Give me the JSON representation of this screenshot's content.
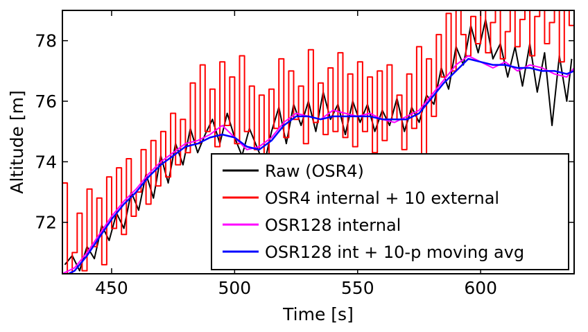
{
  "chart_data": {
    "type": "line",
    "title": "",
    "xlabel": "Time [s]",
    "ylabel": "Altitude [m]",
    "xlim": [
      430,
      638
    ],
    "ylim": [
      70.3,
      79
    ],
    "xticks": [
      450,
      500,
      550,
      600
    ],
    "yticks": [
      72,
      74,
      76,
      78
    ],
    "grid": false,
    "legend_position": "bottom-right",
    "series": [
      {
        "name": "Raw (OSR4)",
        "color": "#000000",
        "x": [
          431,
          434,
          437,
          440,
          443,
          446,
          449,
          452,
          455,
          458,
          461,
          464,
          467,
          470,
          473,
          476,
          479,
          482,
          485,
          488,
          491,
          494,
          497,
          500,
          503,
          506,
          509,
          512,
          515,
          518,
          521,
          524,
          527,
          530,
          533,
          536,
          539,
          542,
          545,
          548,
          551,
          554,
          557,
          560,
          563,
          566,
          569,
          572,
          575,
          578,
          581,
          584,
          587,
          590,
          593,
          596,
          599,
          602,
          605,
          608,
          611,
          614,
          617,
          620,
          623,
          626,
          629,
          632,
          635,
          637
        ],
        "values": [
          70.6,
          70.9,
          70.4,
          71.2,
          70.8,
          71.9,
          71.4,
          72.3,
          71.8,
          73.0,
          72.4,
          73.6,
          72.8,
          74.2,
          73.3,
          74.6,
          73.9,
          75.1,
          74.3,
          74.9,
          75.4,
          74.6,
          75.6,
          74.8,
          74.2,
          75.1,
          74.5,
          73.9,
          75.0,
          75.8,
          74.6,
          75.9,
          75.2,
          76.0,
          75.0,
          76.3,
          75.4,
          75.9,
          74.9,
          76.0,
          75.3,
          75.9,
          75.0,
          75.7,
          75.2,
          76.1,
          75.0,
          75.8,
          75.3,
          76.2,
          75.9,
          77.1,
          76.4,
          77.8,
          77.2,
          78.5,
          77.6,
          78.7,
          77.4,
          77.9,
          76.8,
          77.8,
          76.5,
          77.9,
          76.3,
          77.6,
          75.2,
          77.5,
          76.0,
          77.4
        ]
      },
      {
        "name": "OSR4 internal + 10 external",
        "color": "#ff0000",
        "x": [
          430,
          432,
          434,
          436,
          438,
          440,
          442,
          444,
          446,
          448,
          450,
          452,
          454,
          456,
          458,
          460,
          462,
          464,
          466,
          468,
          470,
          472,
          474,
          476,
          478,
          480,
          482,
          484,
          486,
          488,
          490,
          492,
          494,
          496,
          498,
          500,
          502,
          504,
          506,
          508,
          510,
          512,
          514,
          516,
          518,
          520,
          522,
          524,
          526,
          528,
          530,
          532,
          534,
          536,
          538,
          540,
          542,
          544,
          546,
          548,
          550,
          552,
          554,
          556,
          558,
          560,
          562,
          564,
          566,
          568,
          570,
          572,
          574,
          576,
          578,
          580,
          582,
          584,
          586,
          588,
          590,
          592,
          594,
          596,
          598,
          600,
          602,
          604,
          606,
          608,
          610,
          612,
          614,
          616,
          618,
          620,
          622,
          624,
          626,
          628,
          630,
          632,
          634,
          636,
          638
        ],
        "values": [
          70.5,
          73.3,
          70.3,
          71.0,
          72.3,
          70.4,
          73.1,
          71.2,
          72.8,
          70.6,
          73.5,
          71.8,
          73.8,
          71.6,
          74.1,
          72.2,
          73.0,
          74.4,
          72.6,
          74.7,
          73.2,
          75.0,
          73.5,
          75.6,
          73.9,
          75.4,
          74.3,
          76.6,
          74.6,
          77.2,
          75.0,
          76.4,
          74.5,
          77.3,
          75.2,
          76.8,
          74.6,
          77.5,
          75.0,
          76.5,
          74.4,
          76.2,
          73.8,
          76.4,
          75.1,
          77.4,
          74.8,
          77.0,
          75.4,
          76.5,
          74.6,
          77.7,
          75.3,
          76.6,
          74.9,
          77.1,
          75.0,
          77.6,
          74.8,
          76.9,
          74.5,
          77.3,
          75.0,
          76.8,
          74.3,
          77.0,
          74.7,
          77.2,
          75.4,
          76.2,
          74.4,
          76.9,
          75.1,
          77.8,
          74.0,
          77.4,
          75.5,
          78.2,
          76.8,
          78.9,
          77.0,
          79.0,
          78.2,
          77.5,
          78.8,
          77.9,
          79.0,
          77.6,
          78.6,
          79.0,
          77.4,
          78.3,
          79.0,
          77.8,
          78.7,
          79.0,
          77.5,
          78.8,
          79.0,
          77.9,
          78.6,
          79.0,
          77.3,
          79.0,
          78.5
        ]
      },
      {
        "name": "OSR128 internal",
        "color": "#ff00ff",
        "x": [
          430,
          435,
          440,
          445,
          450,
          455,
          460,
          465,
          470,
          475,
          480,
          485,
          490,
          495,
          500,
          505,
          510,
          515,
          520,
          525,
          530,
          535,
          540,
          545,
          550,
          555,
          560,
          565,
          570,
          575,
          580,
          585,
          590,
          595,
          600,
          605,
          610,
          615,
          620,
          625,
          630,
          635,
          638
        ],
        "values": [
          70.3,
          70.5,
          71.0,
          71.6,
          72.2,
          72.7,
          73.1,
          73.6,
          74.0,
          74.3,
          74.6,
          74.7,
          74.9,
          75.2,
          74.8,
          74.4,
          74.5,
          74.8,
          75.3,
          75.6,
          75.5,
          75.4,
          75.7,
          75.6,
          75.5,
          75.6,
          75.4,
          75.3,
          75.5,
          75.7,
          76.2,
          76.7,
          77.2,
          77.5,
          77.3,
          77.1,
          77.3,
          77.0,
          77.2,
          77.1,
          76.9,
          76.8,
          77.1
        ]
      },
      {
        "name": "OSR128 int + 10-p moving avg",
        "color": "#0000ff",
        "x": [
          430,
          435,
          440,
          445,
          450,
          455,
          460,
          465,
          470,
          475,
          480,
          485,
          490,
          495,
          500,
          505,
          510,
          515,
          520,
          525,
          530,
          535,
          540,
          545,
          550,
          555,
          560,
          565,
          570,
          575,
          580,
          585,
          590,
          595,
          600,
          605,
          610,
          615,
          620,
          625,
          630,
          635,
          638
        ],
        "values": [
          70.2,
          70.4,
          70.9,
          71.5,
          72.1,
          72.6,
          73.0,
          73.5,
          73.9,
          74.2,
          74.5,
          74.6,
          74.8,
          74.9,
          74.8,
          74.5,
          74.4,
          74.7,
          75.2,
          75.5,
          75.5,
          75.4,
          75.5,
          75.5,
          75.5,
          75.5,
          75.4,
          75.4,
          75.4,
          75.6,
          76.1,
          76.6,
          77.0,
          77.4,
          77.3,
          77.2,
          77.2,
          77.1,
          77.1,
          77.0,
          77.0,
          76.9,
          77.0
        ]
      }
    ]
  }
}
